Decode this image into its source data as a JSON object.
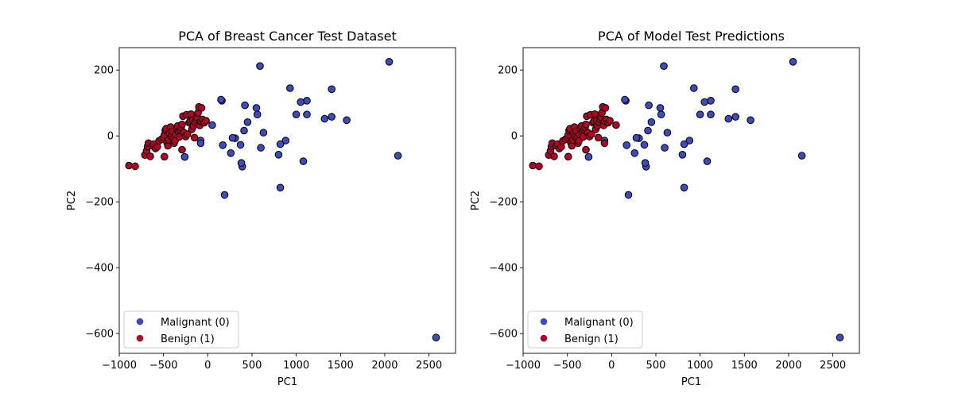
{
  "chart_data": [
    {
      "type": "scatter",
      "title": "PCA of Breast Cancer Test Dataset",
      "xlabel": "PC1",
      "ylabel": "PC2",
      "xlim": [
        -1000,
        2800
      ],
      "ylim": [
        -660,
        268
      ],
      "xticks": [
        -1000,
        -500,
        0,
        500,
        1000,
        1500,
        2000,
        2500
      ],
      "yticks": [
        200,
        0,
        -200,
        -400,
        -600
      ],
      "grid": false,
      "legend": {
        "placement": "lower-left",
        "entries": [
          {
            "label": "Malignant (0)",
            "color": "#3b4cc0"
          },
          {
            "label": "Benign (1)",
            "color": "#b40426"
          }
        ]
      },
      "series": [
        {
          "name": "Malignant (0)",
          "color": "#3b4cc0",
          "points": [
            [
              2050,
              225
            ],
            [
              2580,
              -612
            ],
            [
              2150,
              -60
            ],
            [
              1570,
              48
            ],
            [
              1400,
              142
            ],
            [
              1400,
              58
            ],
            [
              1320,
              52
            ],
            [
              1120,
              107
            ],
            [
              1120,
              65
            ],
            [
              1050,
              103
            ],
            [
              1000,
              65
            ],
            [
              1080,
              -77
            ],
            [
              930,
              145
            ],
            [
              880,
              -14
            ],
            [
              820,
              -25
            ],
            [
              800,
              -57
            ],
            [
              820,
              -157
            ],
            [
              630,
              10
            ],
            [
              600,
              -36
            ],
            [
              590,
              212
            ],
            [
              550,
              85
            ],
            [
              560,
              65
            ],
            [
              450,
              42
            ],
            [
              420,
              93
            ],
            [
              410,
              16
            ],
            [
              390,
              -93
            ],
            [
              380,
              -82
            ],
            [
              370,
              -27
            ],
            [
              310,
              -7
            ],
            [
              280,
              -6
            ],
            [
              260,
              -52
            ],
            [
              190,
              -179
            ],
            [
              170,
              -28
            ],
            [
              160,
              107
            ],
            [
              150,
              110
            ],
            [
              50,
              33
            ],
            [
              -80,
              -14
            ],
            [
              -80,
              -22
            ],
            [
              -260,
              -64
            ]
          ]
        },
        {
          "name": "Benign (1)",
          "color": "#b40426",
          "points": [
            [
              -890,
              -90
            ],
            [
              -820,
              -92
            ],
            [
              -710,
              -58
            ],
            [
              -690,
              -45
            ],
            [
              -680,
              -32
            ],
            [
              -670,
              -22
            ],
            [
              -650,
              -62
            ],
            [
              -630,
              -30
            ],
            [
              -610,
              -25
            ],
            [
              -590,
              -38
            ],
            [
              -570,
              -33
            ],
            [
              -550,
              -15
            ],
            [
              -520,
              -10
            ],
            [
              -500,
              -5
            ],
            [
              -490,
              3
            ],
            [
              -480,
              17
            ],
            [
              -470,
              22
            ],
            [
              -460,
              -20
            ],
            [
              -450,
              -30
            ],
            [
              -440,
              -12
            ],
            [
              -430,
              8
            ],
            [
              -420,
              27
            ],
            [
              -410,
              -2
            ],
            [
              -400,
              14
            ],
            [
              -390,
              -8
            ],
            [
              -380,
              -22
            ],
            [
              -370,
              -15
            ],
            [
              -360,
              5
            ],
            [
              -350,
              20
            ],
            [
              -340,
              30
            ],
            [
              -330,
              12
            ],
            [
              -320,
              -3
            ],
            [
              -310,
              18
            ],
            [
              -300,
              25
            ],
            [
              -290,
              35
            ],
            [
              -280,
              60
            ],
            [
              -270,
              10
            ],
            [
              -250,
              -2
            ],
            [
              -240,
              64
            ],
            [
              -230,
              5
            ],
            [
              -210,
              40
            ],
            [
              -200,
              45
            ],
            [
              -190,
              66
            ],
            [
              -180,
              20
            ],
            [
              -170,
              48
            ],
            [
              -160,
              30
            ],
            [
              -150,
              -5
            ],
            [
              -140,
              42
            ],
            [
              -130,
              50
            ],
            [
              -120,
              56
            ],
            [
              -110,
              70
            ],
            [
              -100,
              88
            ],
            [
              -90,
              32
            ],
            [
              -80,
              45
            ],
            [
              -70,
              85
            ],
            [
              -60,
              50
            ],
            [
              -40,
              40
            ],
            [
              -20,
              46
            ],
            [
              -490,
              -63
            ],
            [
              -290,
              -42
            ]
          ]
        }
      ]
    },
    {
      "type": "scatter",
      "title": "PCA of Model Test Predictions",
      "xlabel": "PC1",
      "ylabel": "PC2",
      "xlim": [
        -1000,
        2800
      ],
      "ylim": [
        -660,
        268
      ],
      "xticks": [
        -1000,
        -500,
        0,
        500,
        1000,
        1500,
        2000,
        2500
      ],
      "yticks": [
        200,
        0,
        -200,
        -400,
        -600
      ],
      "grid": false,
      "legend": {
        "placement": "lower-left",
        "entries": [
          {
            "label": "Malignant (0)",
            "color": "#3b4cc0"
          },
          {
            "label": "Benign (1)",
            "color": "#b40426"
          }
        ]
      },
      "series": [
        {
          "name": "Malignant (0)",
          "color": "#3b4cc0",
          "points": [
            [
              2050,
              225
            ],
            [
              2580,
              -612
            ],
            [
              2150,
              -60
            ],
            [
              1570,
              48
            ],
            [
              1400,
              142
            ],
            [
              1400,
              58
            ],
            [
              1320,
              52
            ],
            [
              1120,
              107
            ],
            [
              1120,
              65
            ],
            [
              1050,
              103
            ],
            [
              1000,
              65
            ],
            [
              1080,
              -77
            ],
            [
              930,
              145
            ],
            [
              880,
              -14
            ],
            [
              820,
              -25
            ],
            [
              800,
              -57
            ],
            [
              820,
              -157
            ],
            [
              630,
              10
            ],
            [
              600,
              -36
            ],
            [
              590,
              212
            ],
            [
              550,
              85
            ],
            [
              560,
              65
            ],
            [
              450,
              42
            ],
            [
              420,
              93
            ],
            [
              410,
              16
            ],
            [
              390,
              -93
            ],
            [
              380,
              -82
            ],
            [
              370,
              -27
            ],
            [
              310,
              -7
            ],
            [
              280,
              -6
            ],
            [
              260,
              -52
            ],
            [
              190,
              -179
            ],
            [
              170,
              -28
            ],
            [
              160,
              107
            ],
            [
              150,
              110
            ],
            [
              -80,
              -14
            ],
            [
              -260,
              -64
            ]
          ]
        },
        {
          "name": "Benign (1)",
          "color": "#b40426",
          "points": [
            [
              -890,
              -90
            ],
            [
              -820,
              -92
            ],
            [
              -710,
              -58
            ],
            [
              -690,
              -45
            ],
            [
              -680,
              -32
            ],
            [
              -670,
              -22
            ],
            [
              -650,
              -62
            ],
            [
              -630,
              -30
            ],
            [
              -610,
              -25
            ],
            [
              -590,
              -38
            ],
            [
              -570,
              -33
            ],
            [
              -550,
              -15
            ],
            [
              -520,
              -10
            ],
            [
              -500,
              -5
            ],
            [
              -490,
              3
            ],
            [
              -480,
              17
            ],
            [
              -470,
              22
            ],
            [
              -460,
              -20
            ],
            [
              -450,
              -30
            ],
            [
              -440,
              -12
            ],
            [
              -430,
              8
            ],
            [
              -420,
              27
            ],
            [
              -410,
              -2
            ],
            [
              -400,
              14
            ],
            [
              -390,
              -8
            ],
            [
              -380,
              -22
            ],
            [
              -370,
              -15
            ],
            [
              -360,
              5
            ],
            [
              -350,
              20
            ],
            [
              -340,
              30
            ],
            [
              -330,
              12
            ],
            [
              -320,
              -3
            ],
            [
              -310,
              18
            ],
            [
              -300,
              25
            ],
            [
              -290,
              35
            ],
            [
              -280,
              60
            ],
            [
              -270,
              10
            ],
            [
              -250,
              -2
            ],
            [
              -240,
              64
            ],
            [
              -230,
              5
            ],
            [
              -210,
              40
            ],
            [
              -200,
              45
            ],
            [
              -190,
              66
            ],
            [
              -180,
              20
            ],
            [
              -170,
              48
            ],
            [
              -160,
              30
            ],
            [
              -150,
              -5
            ],
            [
              -140,
              42
            ],
            [
              -130,
              50
            ],
            [
              -120,
              56
            ],
            [
              -110,
              70
            ],
            [
              -100,
              88
            ],
            [
              -90,
              32
            ],
            [
              -80,
              45
            ],
            [
              -70,
              85
            ],
            [
              -60,
              50
            ],
            [
              -40,
              40
            ],
            [
              -20,
              46
            ],
            [
              50,
              33
            ],
            [
              -80,
              -22
            ],
            [
              -490,
              -63
            ],
            [
              -290,
              -42
            ]
          ]
        }
      ]
    }
  ]
}
